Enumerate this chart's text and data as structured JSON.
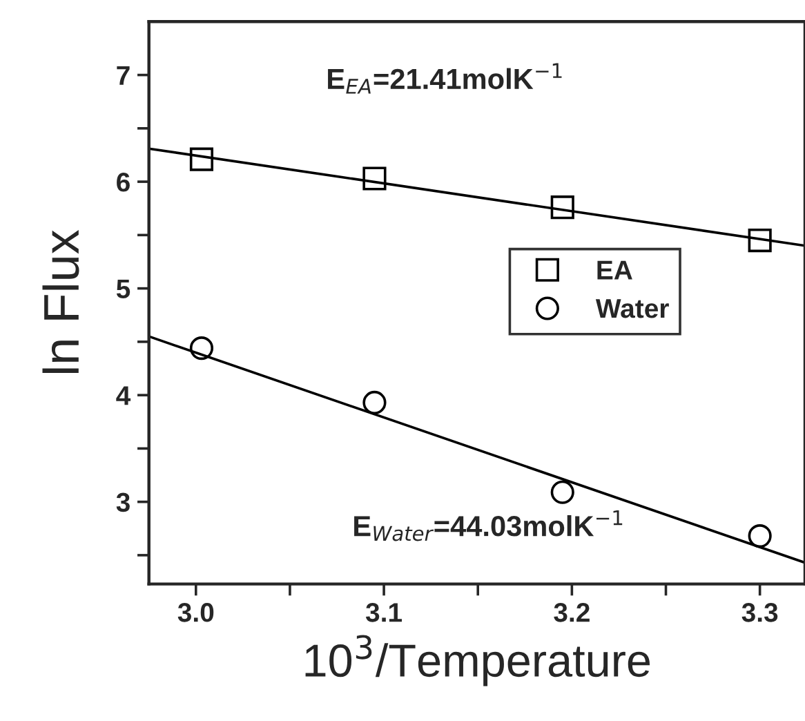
{
  "chart_data": {
    "type": "scatter",
    "xlabel": "10$^{3}$/Temperature",
    "ylabel": "ln Flux",
    "xlim": [
      2.975,
      3.324
    ],
    "ylim": [
      2.23,
      7.5
    ],
    "xticks": [
      {
        "value": 3.0,
        "label": "3.0"
      },
      {
        "value": 3.05,
        "label": null
      },
      3.1,
      {
        "value": 3.15,
        "label": null
      },
      3.2,
      {
        "value": 3.25,
        "label": null
      },
      3.3
    ],
    "yticks": [
      {
        "value": 2.5,
        "label": null
      },
      3,
      {
        "value": 3.5,
        "label": null
      },
      4,
      {
        "value": 4.5,
        "label": null
      },
      5,
      {
        "value": 5.5,
        "label": null
      },
      6,
      {
        "value": 6.5,
        "label": null
      },
      7
    ],
    "grid": false,
    "legend": "right",
    "annotations": [
      "E$_{EA}$=21.41molK$^{−1}$",
      "E$_{Water}$=44.03molK$^{−1}$"
    ],
    "series": [
      {
        "name": "EA",
        "marker": "square",
        "color": "#000000",
        "x": [
          3.003,
          3.095,
          3.195,
          3.3
        ],
        "values": [
          6.21,
          6.03,
          5.76,
          5.45
        ]
      },
      {
        "name": "Water",
        "marker": "circle",
        "color": "#000000",
        "x": [
          3.003,
          3.095,
          3.195,
          3.3
        ],
        "values": [
          4.44,
          3.93,
          3.09,
          2.68
        ]
      },
      {
        "type": "line",
        "line_style": "solid",
        "color": "#000000",
        "x": [
          2.975,
          3.324
        ],
        "values": [
          6.31,
          5.4
        ]
      },
      {
        "type": "line",
        "line_style": "solid",
        "color": "#000000",
        "x": [
          2.975,
          3.324
        ],
        "values": [
          4.55,
          2.43
        ]
      }
    ]
  }
}
